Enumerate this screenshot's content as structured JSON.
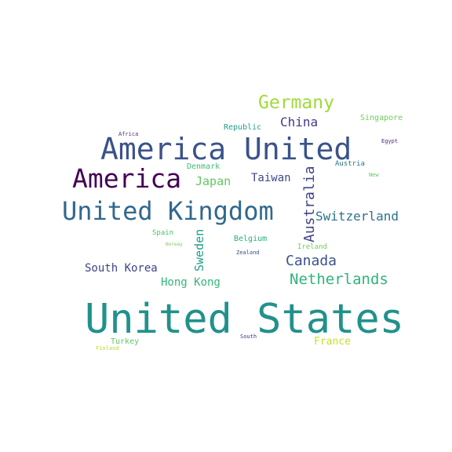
{
  "words": [
    {
      "id": "united-states",
      "text": "United States",
      "color": "#21918c"
    },
    {
      "id": "america-united",
      "text": "America United",
      "color": "#3b528b"
    },
    {
      "id": "united-kingdom",
      "text": "United Kingdom",
      "color": "#31688e"
    },
    {
      "id": "america",
      "text": "America",
      "color": "#440154"
    },
    {
      "id": "germany",
      "text": "Germany",
      "color": "#a0da39"
    },
    {
      "id": "netherlands",
      "text": "Netherlands",
      "color": "#2fb47c"
    },
    {
      "id": "switzerland",
      "text": "Switzerland",
      "color": "#2c728e"
    },
    {
      "id": "australia",
      "text": "Australia",
      "color": "#414487"
    },
    {
      "id": "canada",
      "text": "Canada",
      "color": "#3b528b"
    },
    {
      "id": "china",
      "text": "China",
      "color": "#443983"
    },
    {
      "id": "japan",
      "text": "Japan",
      "color": "#5ec962"
    },
    {
      "id": "taiwan",
      "text": "Taiwan",
      "color": "#3e4989"
    },
    {
      "id": "sweden",
      "text": "Sweden",
      "color": "#1f9e89"
    },
    {
      "id": "south-korea",
      "text": "South Korea",
      "color": "#414487"
    },
    {
      "id": "hong-kong",
      "text": "Hong Kong",
      "color": "#35b779"
    },
    {
      "id": "france",
      "text": "France",
      "color": "#c8e020"
    },
    {
      "id": "singapore",
      "text": "Singapore",
      "color": "#6ece58"
    },
    {
      "id": "republic",
      "text": "Republic",
      "color": "#1f9e89"
    },
    {
      "id": "denmark",
      "text": "Denmark",
      "color": "#3dbc74"
    },
    {
      "id": "belgium",
      "text": "Belgium",
      "color": "#26ad81"
    },
    {
      "id": "ireland",
      "text": "Ireland",
      "color": "#6ece58"
    },
    {
      "id": "austria",
      "text": "Austria",
      "color": "#2c728e"
    },
    {
      "id": "turkey",
      "text": "Turkey",
      "color": "#5ec962"
    },
    {
      "id": "spain",
      "text": "Spain",
      "color": "#4ac16d"
    },
    {
      "id": "egypt",
      "text": "Egypt",
      "color": "#482878"
    },
    {
      "id": "africa",
      "text": "Africa",
      "color": "#472d7b"
    },
    {
      "id": "new",
      "text": "New",
      "color": "#5ec962"
    },
    {
      "id": "norway",
      "text": "Norway",
      "color": "#7ad151"
    },
    {
      "id": "zealand",
      "text": "Zealand",
      "color": "#3e4989"
    },
    {
      "id": "south",
      "text": "South",
      "color": "#46327e"
    },
    {
      "id": "finland",
      "text": "Finland",
      "color": "#b5de2b"
    }
  ]
}
